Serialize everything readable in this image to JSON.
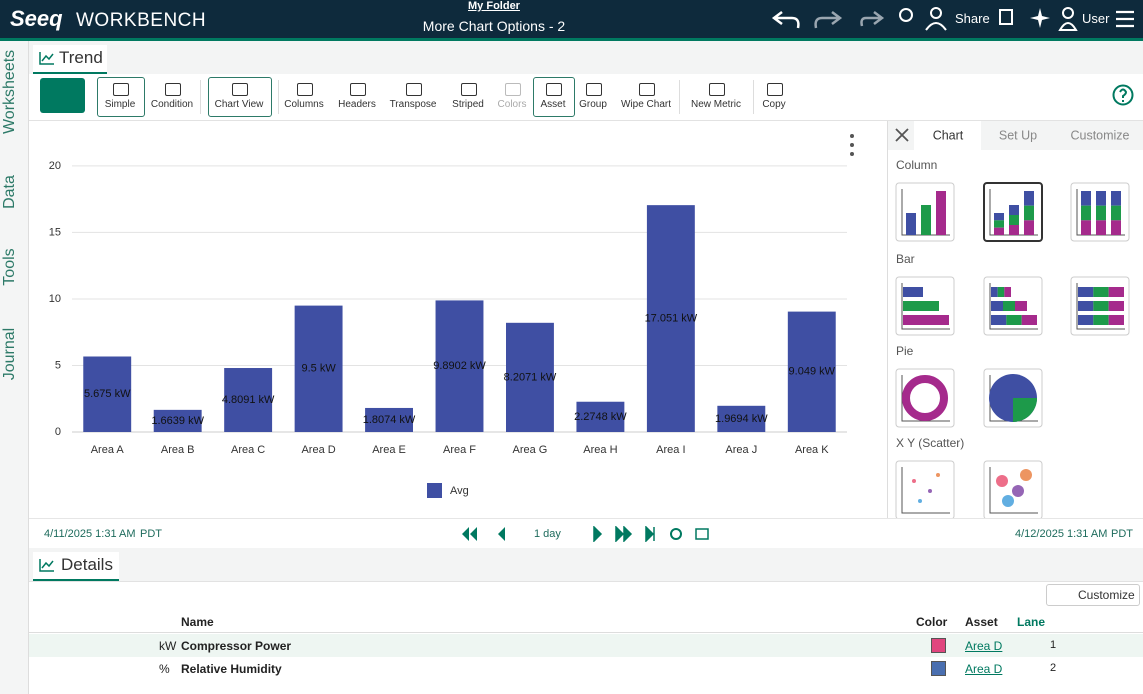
{
  "header": {
    "logo": "Seeq",
    "product": "WORKBENCH",
    "folder": "My Folder",
    "worksheet_title": "More Chart Options - 2",
    "share": "Share",
    "user": "User"
  },
  "sidebar": {
    "tabs": [
      "Worksheets",
      "Data",
      "Tools",
      "Journal"
    ]
  },
  "trend_tab": "Trend",
  "toolbar": {
    "buttons": [
      "Simple",
      "Condition",
      "Chart View",
      "Columns",
      "Headers",
      "Transpose",
      "Striped",
      "Colors",
      "Asset",
      "Group",
      "Wipe Chart",
      "New Metric",
      "Copy"
    ]
  },
  "chart_data": {
    "type": "bar",
    "categories": [
      "Area A",
      "Area B",
      "Area C",
      "Area D",
      "Area E",
      "Area F",
      "Area G",
      "Area H",
      "Area I",
      "Area J",
      "Area K"
    ],
    "series": [
      {
        "name": "Avg",
        "color": "#3f4fa3",
        "values": [
          5.675,
          1.6639,
          4.8091,
          9.5,
          1.8074,
          9.8902,
          8.2071,
          2.2748,
          17.051,
          1.9694,
          9.049
        ],
        "value_labels": [
          "5.675 kW",
          "1.6639 kW",
          "4.8091 kW",
          "9.5 kW",
          "1.8074 kW",
          "9.8902 kW",
          "8.2071 kW",
          "2.2748 kW",
          "17.051 kW",
          "1.9694 kW",
          "9.049 kW"
        ]
      }
    ],
    "ylim": [
      0,
      21
    ],
    "yticks": [
      0,
      5,
      10,
      15,
      20
    ],
    "grid": true,
    "legend": "bottom"
  },
  "time_bar": {
    "start": "4/11/2025 1:31 AM",
    "start_tz": "PDT",
    "duration": "1 day",
    "end": "4/12/2025 1:31 AM",
    "end_tz": "PDT"
  },
  "side_panel": {
    "tabs": [
      "Chart",
      "Set Up",
      "Customize"
    ],
    "sections": [
      "Column",
      "Bar",
      "Pie",
      "X Y (Scatter)"
    ]
  },
  "details": {
    "tab": "Details",
    "customize": "Customize",
    "columns": [
      "Name",
      "Color",
      "Asset",
      "Lane"
    ],
    "rows": [
      {
        "unit": "kW",
        "name": "Compressor Power",
        "color": "#e0457e",
        "asset": "Area D",
        "lane": 1
      },
      {
        "unit": "%",
        "name": "Relative Humidity",
        "color": "#4a6fb0",
        "asset": "Area D",
        "lane": 2
      }
    ]
  }
}
